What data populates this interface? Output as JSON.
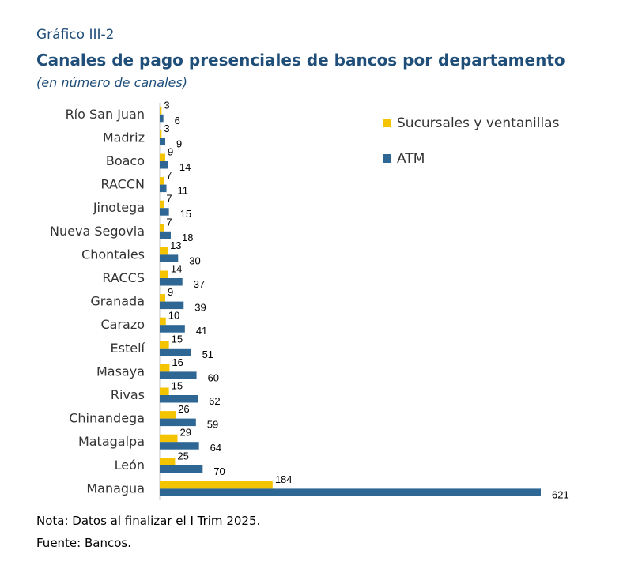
{
  "header": {
    "label": "Gráfico III-2",
    "title": "Canales de pago presenciales de bancos por departamento",
    "subtitle": "(en número de canales)"
  },
  "footer": {
    "note": "Nota: Datos al finalizar el I Trim 2025.",
    "source": "Fuente: Bancos."
  },
  "colors": {
    "sucursales": "#f5c400",
    "atm": "#2e6694",
    "axis": "#c8c8c8"
  },
  "chart_data": {
    "type": "bar",
    "orientation": "horizontal",
    "categories": [
      "Río San Juan",
      "Madriz",
      "Boaco",
      "RACCN",
      "Jinotega",
      "Nueva Segovia",
      "Chontales",
      "RACCS",
      "Granada",
      "Carazo",
      "Estelí",
      "Masaya",
      "Rivas",
      "Chinandega",
      "Matagalpa",
      "León",
      "Managua"
    ],
    "series": [
      {
        "name": "Sucursales y ventanillas",
        "values": [
          3,
          3,
          9,
          7,
          7,
          7,
          13,
          14,
          9,
          10,
          15,
          16,
          15,
          26,
          29,
          25,
          184
        ]
      },
      {
        "name": "ATM",
        "values": [
          6,
          9,
          14,
          11,
          15,
          18,
          30,
          37,
          39,
          41,
          51,
          60,
          62,
          59,
          64,
          70,
          621
        ]
      }
    ],
    "xlim": [
      0,
      621
    ],
    "legend": "top-right",
    "grid": false
  }
}
